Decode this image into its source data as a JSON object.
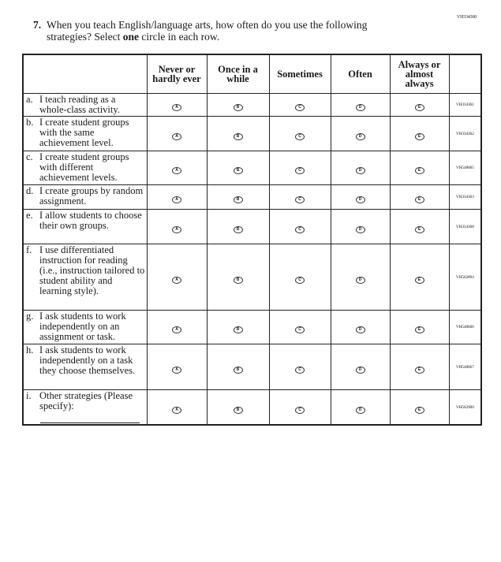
{
  "question_id": "VH334360",
  "question": {
    "number": "7.",
    "text_before": "When you teach English/language arts, how often do you use the following strategies? Select ",
    "text_bold": "one",
    "text_after": " circle in each row."
  },
  "columns": [
    "Never or hardly ever",
    "Once in a while",
    "Sometimes",
    "Often",
    "Always or almost always"
  ],
  "bubble_letters": [
    "A",
    "B",
    "C",
    "D",
    "E"
  ],
  "rows": [
    {
      "letter": "a.",
      "label": "I teach reading as a whole-class activity.",
      "code": "VH334361"
    },
    {
      "letter": "b.",
      "label": "I create student groups with the same achievement level.",
      "code": "VH334362"
    },
    {
      "letter": "c.",
      "label": "I create student groups with different achievement levels.",
      "code": "VH548665"
    },
    {
      "letter": "d.",
      "label": "I create groups by random assignment.",
      "code": "VH334363"
    },
    {
      "letter": "e.",
      "label": "I allow students to choose their own groups.",
      "code": "VH334368"
    },
    {
      "letter": "f.",
      "label": "I use differentiated instruction for reading (i.e., instruction tailored to student ability and learning style).",
      "code": "VH562894"
    },
    {
      "letter": "g.",
      "label": "I ask students to work independently on an assignment or task.",
      "code": "VH548666"
    },
    {
      "letter": "h.",
      "label": "I ask students to work independently on a task they choose themselves.",
      "code": "VH548667"
    },
    {
      "letter": "i.",
      "label": "Other strategies (Please specify):",
      "code": "VH562900",
      "has_specify_line": true
    }
  ]
}
